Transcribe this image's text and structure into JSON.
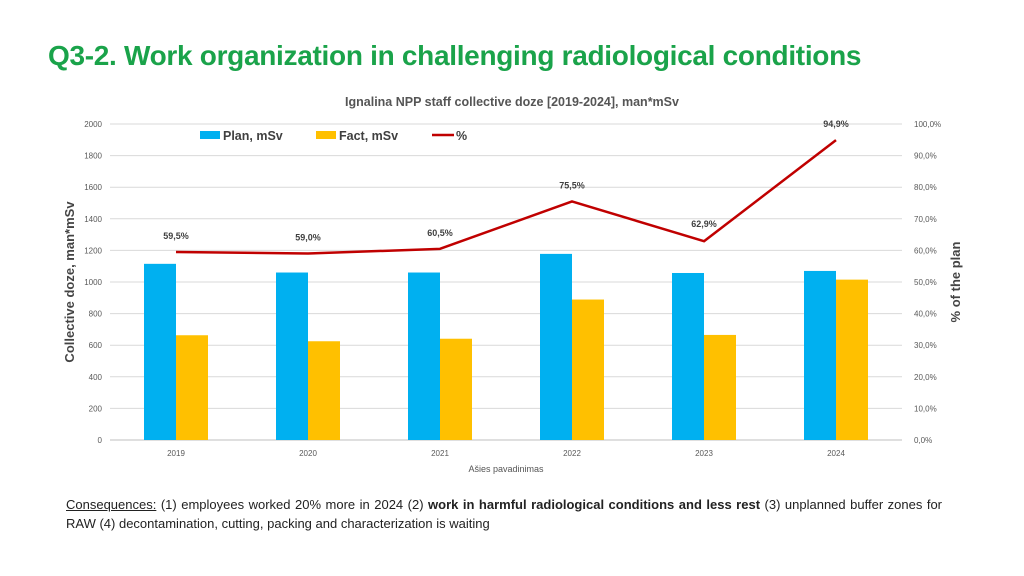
{
  "slide": {
    "title": "Q3-2. Work organization in challenging radiological conditions",
    "footer": {
      "label": "Consequences:",
      "part1": " (1) employees worked 20% more in 2024 (2) ",
      "bold": "work in harmful radiological conditions and less rest",
      "part2": " (3) unplanned buffer zones for RAW (4) decontamination, cutting, packing and characterization is waiting"
    }
  },
  "chart_data": {
    "type": "bar",
    "title": "Ignalina NPP staff collective doze [2019-2024], man*mSv",
    "xlabel": "Ašies pavadinimas",
    "ylabel": "Collective doze, man*mSv",
    "y2label": "% of the plan",
    "categories": [
      "2019",
      "2020",
      "2021",
      "2022",
      "2023",
      "2024"
    ],
    "ylim": [
      0,
      2000
    ],
    "yticks": [
      "0",
      "200",
      "400",
      "600",
      "800",
      "1000",
      "1200",
      "1400",
      "1600",
      "1800",
      "2000"
    ],
    "y2lim": [
      0,
      100
    ],
    "y2ticks": [
      "0,0%",
      "10,0%",
      "20,0%",
      "30,0%",
      "40,0%",
      "50,0%",
      "60,0%",
      "70,0%",
      "80,0%",
      "90,0%",
      "100,0%"
    ],
    "grid": true,
    "legend": "top",
    "series": [
      {
        "name": "Plan, mSv",
        "type": "bar",
        "axis": "left",
        "color": "#00b0f0",
        "values": [
          1115,
          1060,
          1060,
          1178,
          1057,
          1070
        ]
      },
      {
        "name": "Fact, mSv",
        "type": "bar",
        "axis": "left",
        "color": "#ffc000",
        "values": [
          663,
          625,
          641,
          889,
          665,
          1015
        ]
      },
      {
        "name": "%",
        "type": "line",
        "axis": "right",
        "color": "#c00000",
        "values": [
          59.5,
          59.0,
          60.5,
          75.5,
          62.9,
          94.9
        ],
        "labels": [
          "59,5%",
          "59,0%",
          "60,5%",
          "75,5%",
          "62,9%",
          "94,9%"
        ]
      }
    ]
  }
}
